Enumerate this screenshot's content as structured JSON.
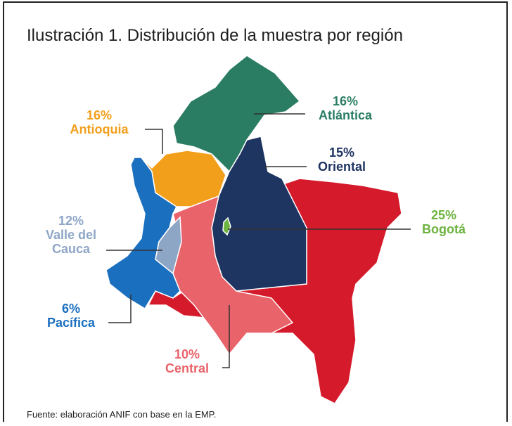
{
  "header": {
    "title": "Ilustración 1. Distribución de la muestra por región"
  },
  "regions": [
    {
      "name": "Antioquia",
      "value": 16,
      "value_label": "16%",
      "color": "#f29f1c"
    },
    {
      "name": "Atlántica",
      "value": 16,
      "value_label": "16%",
      "color": "#2a7d63"
    },
    {
      "name": "Oriental",
      "value": 15,
      "value_label": "15%",
      "color": "#1e3461"
    },
    {
      "name": "Bogotá",
      "value": 25,
      "value_label": "25%",
      "color": "#6db33f"
    },
    {
      "name": "Valle del Cauca",
      "value": 12,
      "value_label": "12%",
      "color": "#8ea6c6"
    },
    {
      "name": "Pacífica",
      "value": 6,
      "value_label": "6%",
      "color": "#1b6fbf"
    },
    {
      "name": "Central",
      "value": 10,
      "value_label": "10%",
      "color": "#e9636a"
    }
  ],
  "footer": {
    "source": "Fuente: elaboración ANIF con base en la EMP."
  }
}
